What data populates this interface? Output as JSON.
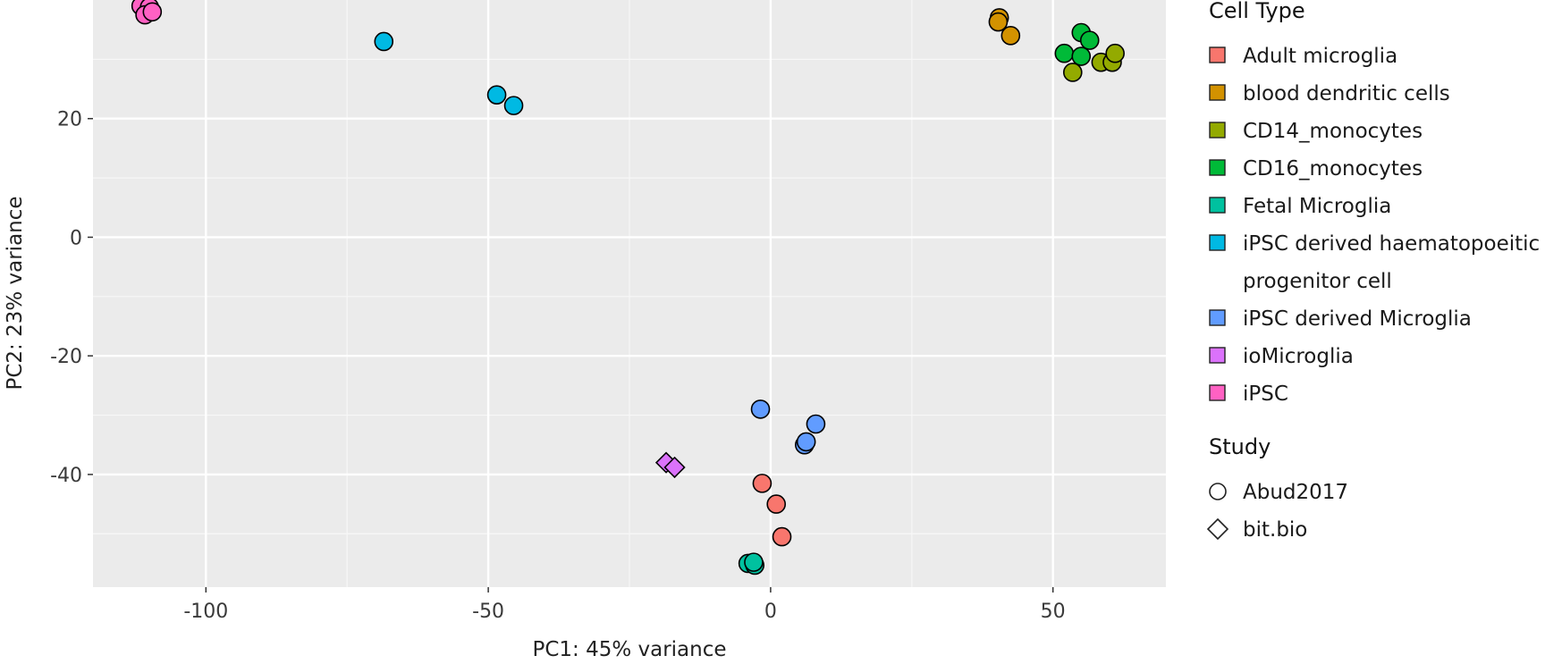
{
  "chart_data": {
    "type": "scatter",
    "xlabel": "PC1: 45% variance",
    "ylabel": "PC2: 23% variance",
    "xlim": [
      -120,
      70
    ],
    "ylim": [
      -59,
      40
    ],
    "x_ticks": [
      -100,
      -50,
      0,
      50
    ],
    "y_ticks": [
      -40,
      -20,
      0,
      20
    ],
    "grid": true,
    "legend_position": "right",
    "legends": [
      {
        "title": "Cell Type",
        "kind": "fill",
        "items": [
          {
            "label": "Adult microglia",
            "color": "#F8766D"
          },
          {
            "label": "blood dendritic cells",
            "color": "#D39200"
          },
          {
            "label": "CD14_monocytes",
            "color": "#93AA00"
          },
          {
            "label": "CD16_monocytes",
            "color": "#00BA38"
          },
          {
            "label": "Fetal Microglia",
            "color": "#00C19F"
          },
          {
            "label": "iPSC derived haematopoeitic",
            "label_line2": "progenitor cell",
            "color": "#00B9E3"
          },
          {
            "label": "iPSC derived Microglia",
            "color": "#619CFF"
          },
          {
            "label": "ioMicroglia",
            "color": "#DB72FB"
          },
          {
            "label": "iPSC",
            "color": "#FF61C3"
          }
        ]
      },
      {
        "title": "Study",
        "kind": "shape",
        "items": [
          {
            "label": "Abud2017",
            "shape": "circle"
          },
          {
            "label": "bit.bio",
            "shape": "diamond"
          }
        ]
      }
    ],
    "series": [
      {
        "name": "Adult microglia",
        "color": "#F8766D",
        "shape": "circle",
        "points": [
          [
            -1.5,
            -41.5
          ],
          [
            1,
            -45
          ],
          [
            2,
            -50.5
          ]
        ]
      },
      {
        "name": "blood dendritic cells",
        "color": "#D39200",
        "shape": "circle",
        "points": [
          [
            40.5,
            37
          ],
          [
            40.3,
            36.3
          ],
          [
            42.5,
            34
          ]
        ]
      },
      {
        "name": "CD14_monocytes",
        "color": "#93AA00",
        "shape": "circle",
        "points": [
          [
            53.5,
            27.8
          ],
          [
            58.5,
            29.5
          ],
          [
            60.5,
            29.5
          ],
          [
            61,
            31
          ]
        ]
      },
      {
        "name": "CD16_monocytes",
        "color": "#00BA38",
        "shape": "circle",
        "points": [
          [
            52,
            31
          ],
          [
            55,
            30.5
          ],
          [
            55,
            34.5
          ],
          [
            56.5,
            33.2
          ]
        ]
      },
      {
        "name": "Fetal Microglia",
        "color": "#00C19F",
        "shape": "circle",
        "points": [
          [
            -4,
            -55
          ],
          [
            -2.8,
            -55.3
          ],
          [
            -3,
            -54.8
          ]
        ]
      },
      {
        "name": "iPSC derived haematopoeitic progenitor cell",
        "color": "#00B9E3",
        "shape": "circle",
        "points": [
          [
            -68.5,
            33
          ],
          [
            -48.5,
            24
          ],
          [
            -45.5,
            22.2
          ]
        ]
      },
      {
        "name": "iPSC derived Microglia",
        "color": "#619CFF",
        "shape": "circle",
        "points": [
          [
            -1.8,
            -29
          ],
          [
            8,
            -31.5
          ],
          [
            6,
            -35
          ],
          [
            6.3,
            -34.5
          ]
        ]
      },
      {
        "name": "ioMicroglia",
        "color": "#DB72FB",
        "shape": "diamond",
        "points": [
          [
            -18.5,
            -38
          ],
          [
            -17,
            -38.8
          ]
        ]
      },
      {
        "name": "iPSC",
        "color": "#FF61C3",
        "shape": "circle",
        "points": [
          [
            -111.5,
            39
          ],
          [
            -110,
            38.8
          ],
          [
            -110.8,
            37.5
          ],
          [
            -109.5,
            38
          ]
        ]
      }
    ]
  }
}
